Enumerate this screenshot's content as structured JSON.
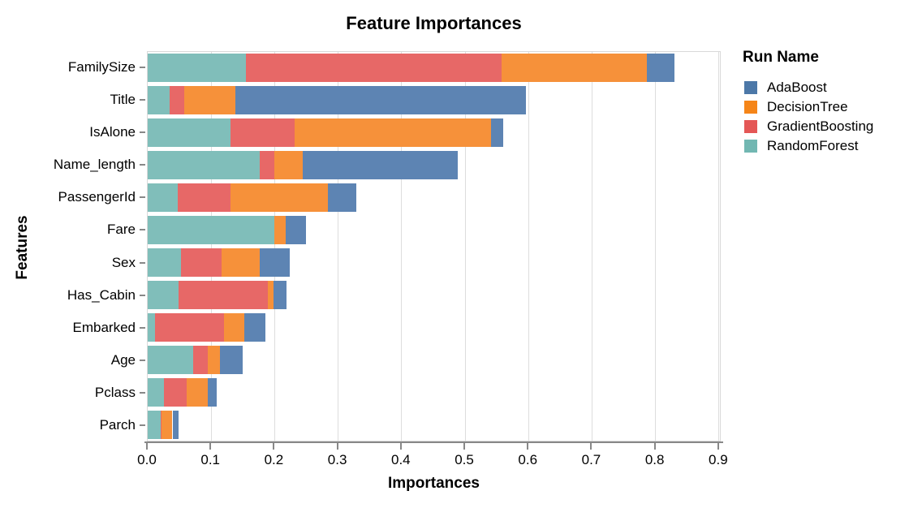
{
  "legend": {
    "title": "Run Name",
    "items": [
      {
        "label": "AdaBoost",
        "color": "#4C78A8"
      },
      {
        "label": "DecisionTree",
        "color": "#F58518"
      },
      {
        "label": "GradientBoosting",
        "color": "#E45756"
      },
      {
        "label": "RandomForest",
        "color": "#72B7B2"
      }
    ]
  },
  "chart_data": {
    "type": "bar",
    "orientation": "horizontal",
    "stacked": true,
    "title": "Feature Importances",
    "xlabel": "Importances",
    "ylabel": "Features",
    "categories": [
      "FamilySize",
      "Title",
      "IsAlone",
      "Name_length",
      "PassengerId",
      "Fare",
      "Sex",
      "Has_Cabin",
      "Embarked",
      "Age",
      "Pclass",
      "Parch"
    ],
    "series": [
      {
        "name": "RandomForest",
        "color": "#80BEBA",
        "values": [
          0.155,
          0.035,
          0.13,
          0.176,
          0.047,
          0.2,
          0.052,
          0.049,
          0.011,
          0.072,
          0.026,
          0.02
        ]
      },
      {
        "name": "GradientBoosting",
        "color": "#E76867",
        "values": [
          0.402,
          0.022,
          0.101,
          0.024,
          0.084,
          0.0,
          0.064,
          0.14,
          0.109,
          0.022,
          0.036,
          0.002
        ]
      },
      {
        "name": "DecisionTree",
        "color": "#F6913A",
        "values": [
          0.23,
          0.081,
          0.31,
          0.044,
          0.153,
          0.017,
          0.061,
          0.009,
          0.032,
          0.02,
          0.032,
          0.017
        ]
      },
      {
        "name": "AdaBoost",
        "color": "#5D84B3",
        "values": [
          0.043,
          0.458,
          0.019,
          0.245,
          0.045,
          0.032,
          0.047,
          0.021,
          0.033,
          0.035,
          0.015,
          0.009
        ]
      }
    ],
    "totals": [
      0.83,
      0.596,
      0.56,
      0.489,
      0.329,
      0.249,
      0.224,
      0.219,
      0.185,
      0.149,
      0.109,
      0.048
    ],
    "xticks": [
      0.0,
      0.1,
      0.2,
      0.3,
      0.4,
      0.5,
      0.6,
      0.7,
      0.8,
      0.9
    ],
    "xtick_labels": [
      "0.0",
      "0.1",
      "0.2",
      "0.3",
      "0.4",
      "0.5",
      "0.6",
      "0.7",
      "0.8",
      "0.9"
    ],
    "xlim": [
      0,
      0.904
    ],
    "grid": true,
    "legend_position": "right",
    "axis_color": "#888888",
    "grid_color": "#dddddd"
  }
}
